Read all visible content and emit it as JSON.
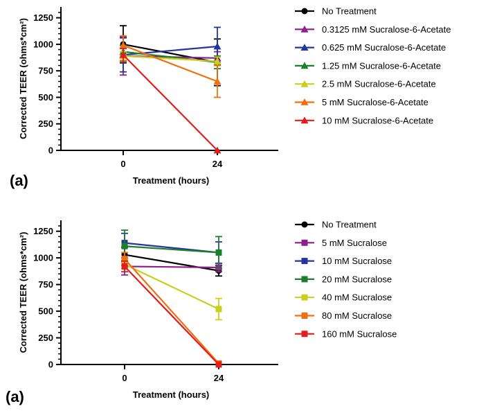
{
  "chart_data": [
    {
      "type": "line",
      "panel_label": "(a)",
      "xlabel": "Treatment (hours)",
      "ylabel": "Corrected TEER (ohms*cm²)",
      "x": [
        0,
        24
      ],
      "x_tick_labels": [
        "0",
        "24"
      ],
      "ylim": [
        0,
        1300
      ],
      "y_ticks": [
        0,
        250,
        500,
        750,
        1000,
        1250
      ],
      "grid": false,
      "legend_position": "right",
      "series": [
        {
          "name": "No Treatment",
          "color": "#000000",
          "marker": "circle",
          "values": [
            1000,
            830
          ],
          "errors": [
            175,
            220
          ]
        },
        {
          "name": "0.3125 mM Sucralose-6-Acetate",
          "color": "#8e1d8e",
          "marker": "triangle",
          "values": [
            890,
            870
          ],
          "errors": [
            180,
            60
          ]
        },
        {
          "name": "0.625 mM Sucralose-6-Acetate",
          "color": "#2535a0",
          "marker": "triangle",
          "values": [
            900,
            980
          ],
          "errors": [
            160,
            180
          ]
        },
        {
          "name": "1.25 mM Sucralose-6-Acetate",
          "color": "#1c7f2a",
          "marker": "triangle",
          "values": [
            930,
            830
          ],
          "errors": [
            60,
            60
          ]
        },
        {
          "name": "2.5 mM Sucralose-6-Acetate",
          "color": "#c9cf1b",
          "marker": "triangle",
          "values": [
            890,
            840
          ],
          "errors": [
            40,
            40
          ]
        },
        {
          "name": "5 mM Sucralose-6-Acetate",
          "color": "#f07010",
          "marker": "triangle",
          "values": [
            990,
            650
          ],
          "errors": [
            90,
            150
          ]
        },
        {
          "name": "10 mM Sucralose-6-Acetate",
          "color": "#e31d1d",
          "marker": "triangle",
          "values": [
            900,
            0
          ],
          "errors": [
            60,
            0
          ]
        }
      ]
    },
    {
      "type": "line",
      "panel_label": "(a)",
      "xlabel": "Treatment (hours)",
      "ylabel": "Corrected TEER (ohms*cm²)",
      "x": [
        0,
        24
      ],
      "x_tick_labels": [
        "0",
        "24"
      ],
      "ylim": [
        0,
        1300
      ],
      "y_ticks": [
        0,
        250,
        500,
        750,
        1000,
        1250
      ],
      "grid": false,
      "legend_position": "right",
      "series": [
        {
          "name": "No Treatment",
          "color": "#000000",
          "marker": "circle",
          "values": [
            1030,
            880
          ],
          "errors": [
            70,
            50
          ]
        },
        {
          "name": "5 mM Sucralose",
          "color": "#8e1d8e",
          "marker": "square",
          "values": [
            920,
            910
          ],
          "errors": [
            80,
            40
          ]
        },
        {
          "name": "10 mM Sucralose",
          "color": "#2535a0",
          "marker": "square",
          "values": [
            1140,
            1050
          ],
          "errors": [
            90,
            100
          ]
        },
        {
          "name": "20 mM Sucralose",
          "color": "#1c7f2a",
          "marker": "square",
          "values": [
            1110,
            1050
          ],
          "errors": [
            150,
            150
          ]
        },
        {
          "name": "40 mM Sucralose",
          "color": "#c9cf1b",
          "marker": "square",
          "values": [
            940,
            520
          ],
          "errors": [
            40,
            100
          ]
        },
        {
          "name": "80 mM Sucralose",
          "color": "#f07010",
          "marker": "square",
          "values": [
            990,
            10
          ],
          "errors": [
            60,
            0
          ]
        },
        {
          "name": "160 mM Sucralose",
          "color": "#e31d1d",
          "marker": "square",
          "values": [
            920,
            0
          ],
          "errors": [
            50,
            0
          ]
        }
      ]
    }
  ]
}
